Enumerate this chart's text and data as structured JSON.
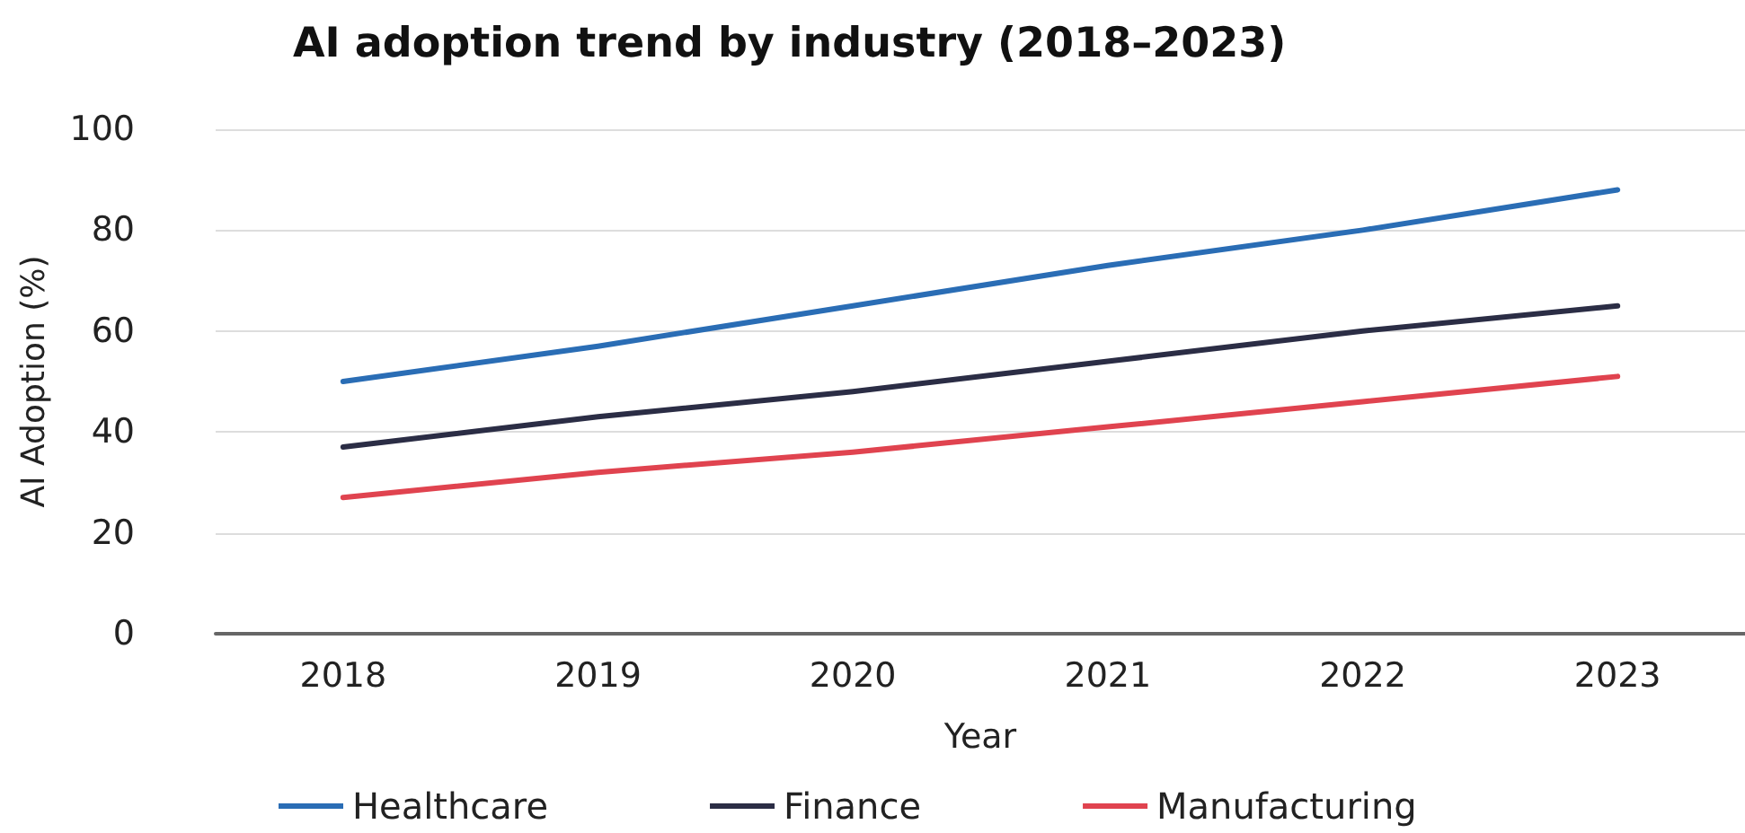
{
  "chart_data": {
    "type": "line",
    "title": "AI adoption trend by industry (2018–2023)",
    "xlabel": "Year",
    "ylabel": "AI Adoption (%)",
    "categories": [
      "2018",
      "2019",
      "2020",
      "2021",
      "2022",
      "2023"
    ],
    "series": [
      {
        "name": "Healthcare",
        "color": "#2a6db5",
        "values": [
          50,
          57,
          65,
          73,
          80,
          88
        ]
      },
      {
        "name": "Finance",
        "color": "#2b2d45",
        "values": [
          37,
          43,
          48,
          54,
          60,
          65
        ]
      },
      {
        "name": "Manufacturing",
        "color": "#e0434f",
        "values": [
          27,
          32,
          36,
          41,
          46,
          51
        ]
      }
    ],
    "ylim": [
      0,
      100
    ],
    "yticks": [
      0,
      20,
      40,
      60,
      80,
      100
    ],
    "grid": "y",
    "legend": "bottom left",
    "marker": "none",
    "line_style": "solid"
  }
}
